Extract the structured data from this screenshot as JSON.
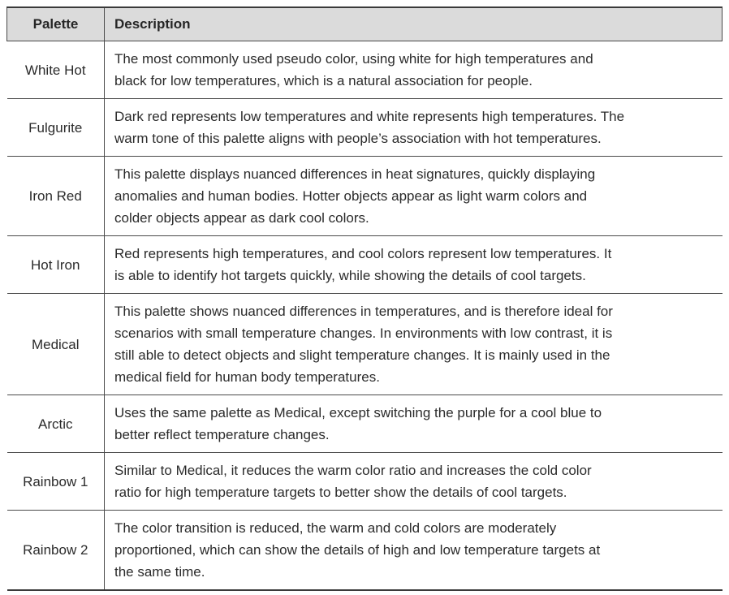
{
  "colors": {
    "header_background": "#dbdbdb",
    "border": "#4a4a4a",
    "outer_border": "#3a3a3a",
    "text": "#2b2b2b"
  },
  "table": {
    "columns": {
      "palette": "Palette",
      "description": "Description"
    },
    "rows": [
      {
        "palette": "White Hot",
        "description_lines": [
          "The most commonly used pseudo color, using white for high temperatures and",
          "black for low temperatures, which is a natural association for people."
        ]
      },
      {
        "palette": "Fulgurite",
        "description_lines": [
          "Dark red represents low temperatures and white represents high temperatures. The",
          "warm tone of this palette aligns with people’s association with hot temperatures."
        ]
      },
      {
        "palette": "Iron Red",
        "description_lines": [
          "This palette displays nuanced differences in heat signatures, quickly displaying",
          "anomalies and human bodies. Hotter objects appear as light warm colors and",
          "colder objects appear as dark cool colors."
        ]
      },
      {
        "palette": "Hot Iron",
        "description_lines": [
          "Red represents high temperatures, and cool colors represent low temperatures. It",
          "is able to identify hot targets quickly, while showing the details of cool targets."
        ]
      },
      {
        "palette": "Medical",
        "description_lines": [
          "This palette shows nuanced differences in temperatures, and is therefore ideal for",
          "scenarios with small temperature changes. In environments with low contrast, it is",
          "still able to detect objects and slight temperature changes. It is mainly used in the",
          "medical field for human body temperatures."
        ]
      },
      {
        "palette": "Arctic",
        "description_lines": [
          "Uses the same palette as Medical, except switching the purple for a cool blue to",
          "better reflect temperature changes."
        ]
      },
      {
        "palette": "Rainbow 1",
        "description_lines": [
          "Similar to Medical, it reduces the warm color ratio and increases the cold color",
          "ratio for high temperature targets to better show the details of cool targets."
        ]
      },
      {
        "palette": "Rainbow 2",
        "description_lines": [
          "The color transition is reduced, the warm and cold colors are moderately",
          "proportioned, which can show the details of high and low temperature targets at",
          "the same time."
        ]
      }
    ]
  }
}
